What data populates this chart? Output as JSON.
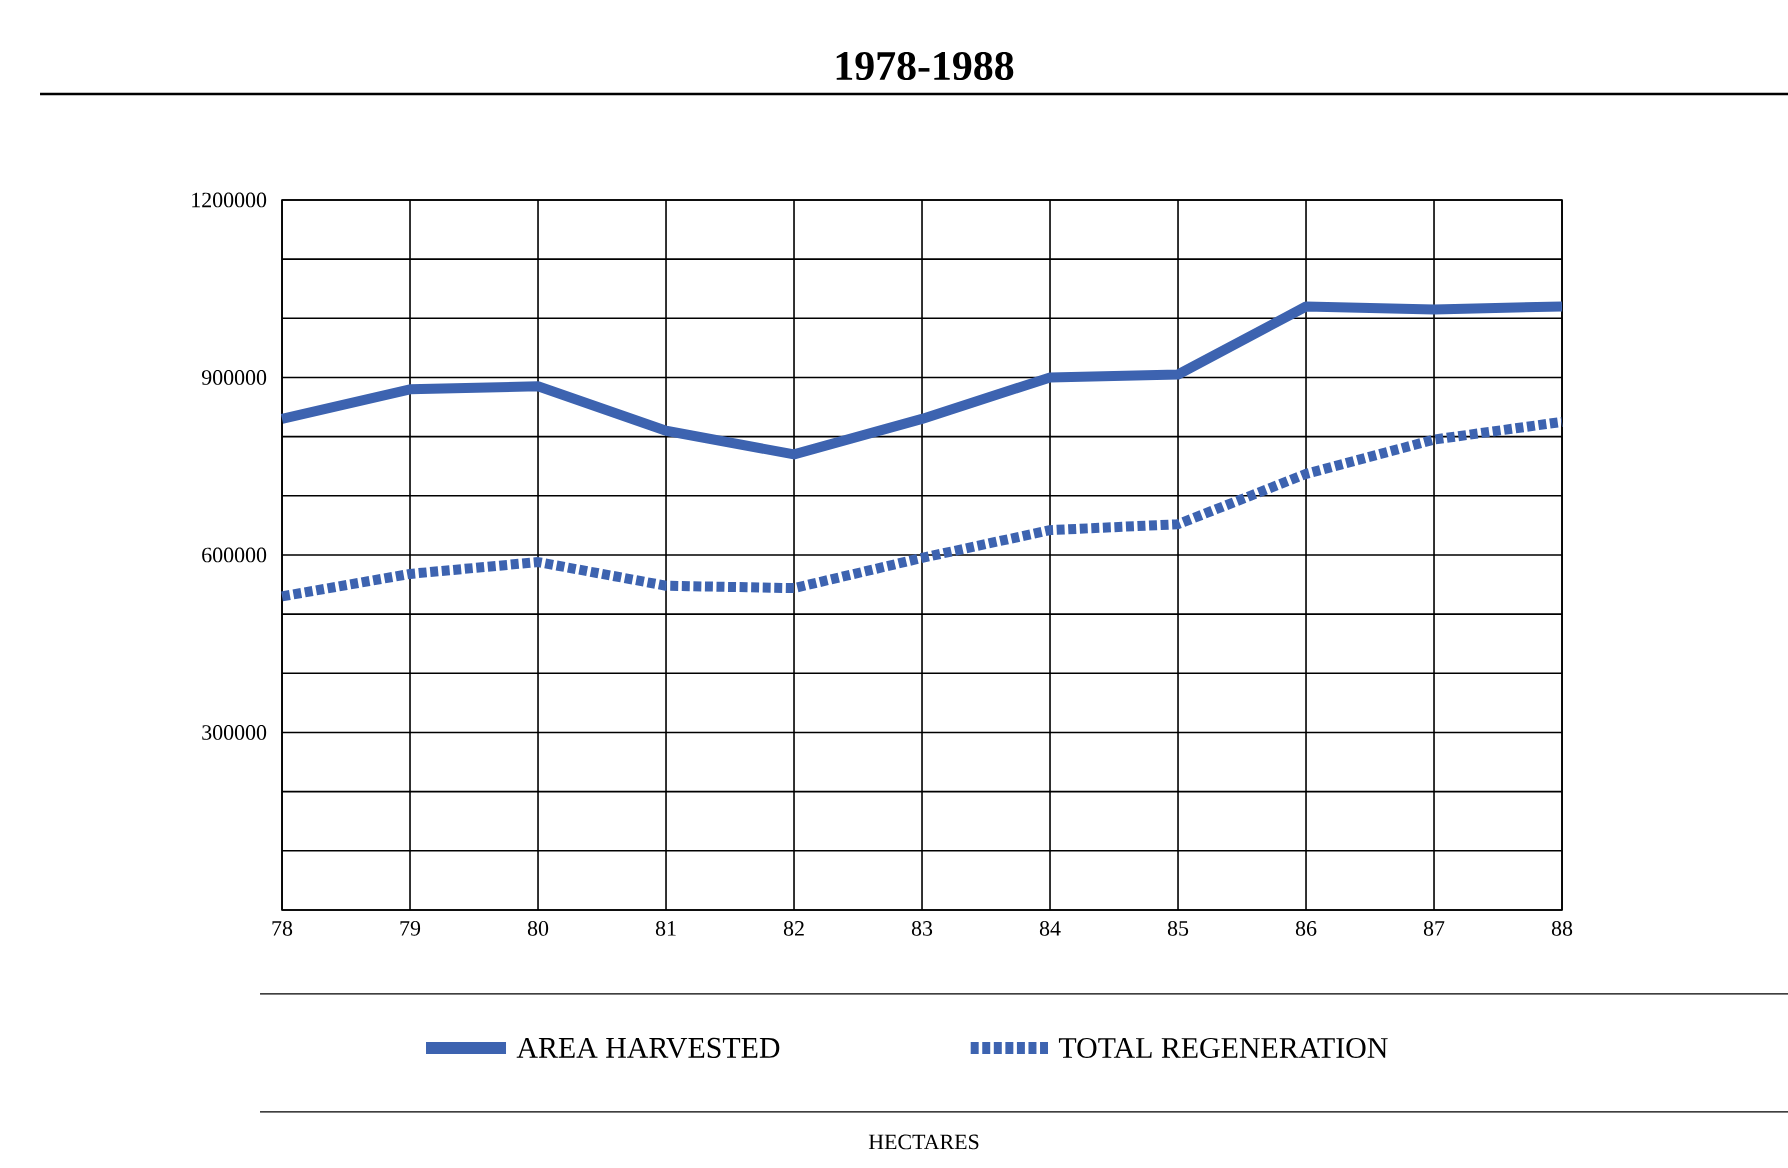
{
  "chart_data": {
    "type": "line",
    "title": "1978-1988",
    "annotations": [
      "HECTARES"
    ],
    "x": [
      78,
      79,
      80,
      81,
      82,
      83,
      84,
      85,
      86,
      87,
      88
    ],
    "xlim": [
      78,
      88
    ],
    "xticks": [
      78,
      79,
      80,
      81,
      82,
      83,
      84,
      85,
      86,
      87,
      88
    ],
    "ylim": [
      0,
      1200000
    ],
    "yticks": [
      {
        "value": 0,
        "label": null
      },
      {
        "value": 100000,
        "label": null
      },
      {
        "value": 200000,
        "label": null
      },
      300000,
      {
        "value": 400000,
        "label": null
      },
      {
        "value": 500000,
        "label": null
      },
      600000,
      {
        "value": 700000,
        "label": null
      },
      {
        "value": 800000,
        "label": null
      },
      900000,
      {
        "value": 1000000,
        "label": null
      },
      {
        "value": 1100000,
        "label": null
      },
      1200000
    ],
    "grid": true,
    "legend": "bottom",
    "marker": "none",
    "series": [
      {
        "name": "AREA HARVESTED",
        "color": "#3d63b0",
        "line_style": "solid",
        "values": [
          830000,
          880000,
          885000,
          810000,
          770000,
          830000,
          900000,
          905000,
          1020000,
          1015000,
          1020000
        ]
      },
      {
        "name": "TOTAL REGENERATION",
        "color": "#3d63b0",
        "line_style": "dotted",
        "values": [
          530000,
          568000,
          588000,
          548000,
          544000,
          595000,
          642000,
          652000,
          737000,
          795000,
          825000
        ]
      }
    ]
  }
}
